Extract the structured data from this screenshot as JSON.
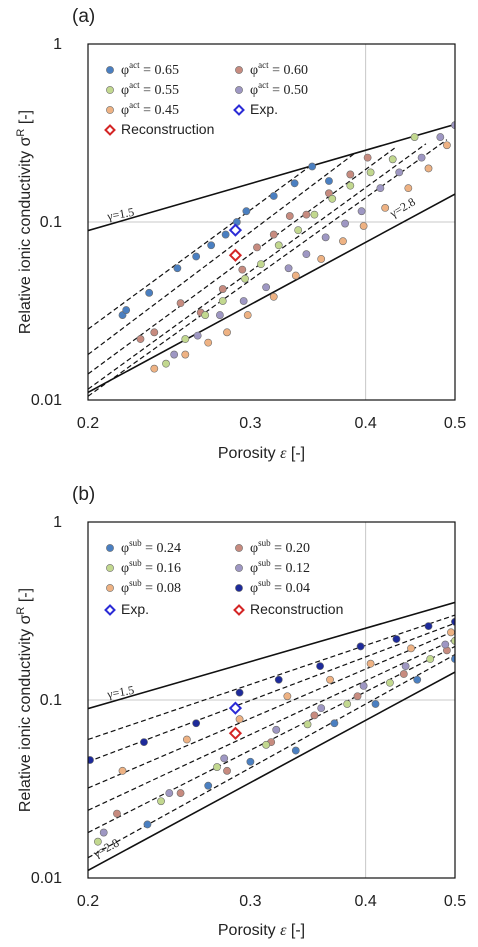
{
  "chart_data": [
    {
      "panel": "(a)",
      "type": "scatter",
      "xlabel": "Porosity ε [-]",
      "ylabel": "Relative ionic conductivity σR [-]",
      "xscale": "log",
      "yscale": "log",
      "xlim": [
        0.2,
        0.5
      ],
      "ylim": [
        0.01,
        1
      ],
      "x_ticks": [
        "0.2",
        "0.3",
        "0.4",
        "0.5"
      ],
      "y_ticks": [
        "1",
        "0.1",
        "0.01"
      ],
      "grid": "single lines at x=0.4, y=0.1",
      "legend_position": "top-left",
      "bound_lines": [
        {
          "label": "γ=1.5",
          "gamma": 1.5
        },
        {
          "label": "γ=2.8",
          "gamma": 2.8
        }
      ],
      "series": [
        {
          "name": "φact = 0.65",
          "color": "#4a7fc1",
          "x": [
            0.218,
            0.22,
            0.233,
            0.25,
            0.262,
            0.272,
            0.282,
            0.29,
            0.297,
            0.318,
            0.335,
            0.35,
            0.365
          ],
          "y": [
            0.03,
            0.032,
            0.04,
            0.055,
            0.064,
            0.074,
            0.085,
            0.1,
            0.115,
            0.14,
            0.165,
            0.205,
            0.17
          ]
        },
        {
          "name": "φact = 0.60",
          "color": "#c78b7f",
          "x": [
            0.228,
            0.236,
            0.252,
            0.265,
            0.28,
            0.294,
            0.305,
            0.318,
            0.331,
            0.345,
            0.365,
            0.385,
            0.402
          ],
          "y": [
            0.022,
            0.024,
            0.035,
            0.031,
            0.042,
            0.054,
            0.072,
            0.085,
            0.108,
            0.11,
            0.145,
            0.185,
            0.23
          ]
        },
        {
          "name": "φact = 0.55",
          "color": "#c2d88f",
          "x": [
            0.243,
            0.255,
            0.268,
            0.28,
            0.296,
            0.308,
            0.322,
            0.338,
            0.352,
            0.368,
            0.385,
            0.405,
            0.428,
            0.452
          ],
          "y": [
            0.016,
            0.022,
            0.03,
            0.036,
            0.048,
            0.058,
            0.074,
            0.09,
            0.11,
            0.135,
            0.16,
            0.19,
            0.225,
            0.3
          ]
        },
        {
          "name": "φact = 0.50",
          "color": "#9e97c3",
          "x": [
            0.248,
            0.263,
            0.278,
            0.295,
            0.312,
            0.33,
            0.345,
            0.362,
            0.38,
            0.396,
            0.415,
            0.435,
            0.46,
            0.482,
            0.5
          ],
          "y": [
            0.018,
            0.023,
            0.03,
            0.036,
            0.043,
            0.055,
            0.066,
            0.082,
            0.098,
            0.115,
            0.155,
            0.19,
            0.23,
            0.3,
            0.35
          ]
        },
        {
          "name": "φact = 0.45",
          "color": "#eeb283",
          "x": [
            0.236,
            0.255,
            0.27,
            0.283,
            0.298,
            0.318,
            0.336,
            0.358,
            0.378,
            0.398,
            0.42,
            0.445,
            0.468,
            0.49
          ],
          "y": [
            0.015,
            0.018,
            0.021,
            0.024,
            0.03,
            0.038,
            0.05,
            0.062,
            0.078,
            0.095,
            0.12,
            0.155,
            0.2,
            0.27
          ]
        }
      ],
      "exp": {
        "name": "Exp.",
        "color": "#2b2bd6",
        "x": 0.289,
        "y": 0.09
      },
      "reconstruction": {
        "name": "Reconstruction",
        "color": "#d42525",
        "x": 0.289,
        "y": 0.065
      },
      "fit_lines": [
        {
          "x": [
            0.2,
            0.35
          ],
          "y": [
            0.025,
            0.21
          ]
        },
        {
          "x": [
            0.2,
            0.39
          ],
          "y": [
            0.018,
            0.245
          ]
        },
        {
          "x": [
            0.2,
            0.43
          ],
          "y": [
            0.014,
            0.26
          ]
        },
        {
          "x": [
            0.2,
            0.465
          ],
          "y": [
            0.0115,
            0.275
          ]
        },
        {
          "x": [
            0.2,
            0.49
          ],
          "y": [
            0.0105,
            0.29
          ]
        }
      ]
    },
    {
      "panel": "(b)",
      "type": "scatter",
      "xlabel": "Porosity ε [-]",
      "ylabel": "Relative ionic conductivity σR [-]",
      "xscale": "log",
      "yscale": "log",
      "xlim": [
        0.2,
        0.5
      ],
      "ylim": [
        0.01,
        1
      ],
      "x_ticks": [
        "0.2",
        "0.3",
        "0.4",
        "0.5"
      ],
      "y_ticks": [
        "1",
        "0.1",
        "0.01"
      ],
      "grid": "single lines at x=0.4, y=0.1",
      "legend_position": "top-left",
      "bound_lines": [
        {
          "label": "γ=1.5",
          "gamma": 1.5
        },
        {
          "label": "γ=2.8",
          "gamma": 2.8
        }
      ],
      "series": [
        {
          "name": "φsub = 0.24",
          "color": "#4a7fc1",
          "x": [
            0.232,
            0.27,
            0.3,
            0.336,
            0.37,
            0.41,
            0.455,
            0.5
          ],
          "y": [
            0.02,
            0.033,
            0.045,
            0.052,
            0.074,
            0.095,
            0.13,
            0.17
          ]
        },
        {
          "name": "φsub = 0.20",
          "color": "#c78b7f",
          "x": [
            0.215,
            0.252,
            0.283,
            0.316,
            0.352,
            0.392,
            0.44,
            0.49
          ],
          "y": [
            0.023,
            0.03,
            0.04,
            0.058,
            0.082,
            0.105,
            0.14,
            0.19
          ]
        },
        {
          "name": "φsub = 0.16",
          "color": "#c2d88f",
          "x": [
            0.205,
            0.24,
            0.276,
            0.312,
            0.346,
            0.382,
            0.425,
            0.47,
            0.5
          ],
          "y": [
            0.016,
            0.027,
            0.042,
            0.056,
            0.073,
            0.095,
            0.125,
            0.17,
            0.215
          ]
        },
        {
          "name": "φsub = 0.12",
          "color": "#9e97c3",
          "x": [
            0.208,
            0.245,
            0.281,
            0.32,
            0.358,
            0.398,
            0.442,
            0.488
          ],
          "y": [
            0.018,
            0.03,
            0.047,
            0.068,
            0.09,
            0.12,
            0.155,
            0.205
          ]
        },
        {
          "name": "φsub = 0.08",
          "color": "#eeb283",
          "x": [
            0.218,
            0.256,
            0.292,
            0.329,
            0.366,
            0.405,
            0.448,
            0.495
          ],
          "y": [
            0.04,
            0.06,
            0.078,
            0.105,
            0.13,
            0.16,
            0.195,
            0.24
          ]
        },
        {
          "name": "φsub = 0.04",
          "color": "#1d2a9a",
          "x": [
            0.201,
            0.23,
            0.262,
            0.292,
            0.322,
            0.357,
            0.395,
            0.432,
            0.468,
            0.5
          ],
          "y": [
            0.046,
            0.058,
            0.074,
            0.11,
            0.13,
            0.155,
            0.2,
            0.22,
            0.26,
            0.275
          ]
        }
      ],
      "exp": {
        "name": "Exp.",
        "color": "#2b2bd6",
        "x": 0.289,
        "y": 0.09
      },
      "reconstruction": {
        "name": "Reconstruction",
        "color": "#d42525",
        "x": 0.289,
        "y": 0.065
      },
      "fit_lines": [
        {
          "x": [
            0.2,
            0.5
          ],
          "y": [
            0.06,
            0.3
          ]
        },
        {
          "x": [
            0.2,
            0.5
          ],
          "y": [
            0.045,
            0.27
          ]
        },
        {
          "x": [
            0.2,
            0.5
          ],
          "y": [
            0.032,
            0.245
          ]
        },
        {
          "x": [
            0.2,
            0.5
          ],
          "y": [
            0.024,
            0.22
          ]
        },
        {
          "x": [
            0.2,
            0.5
          ],
          "y": [
            0.018,
            0.2
          ]
        },
        {
          "x": [
            0.2,
            0.5
          ],
          "y": [
            0.013,
            0.18
          ]
        }
      ]
    }
  ]
}
